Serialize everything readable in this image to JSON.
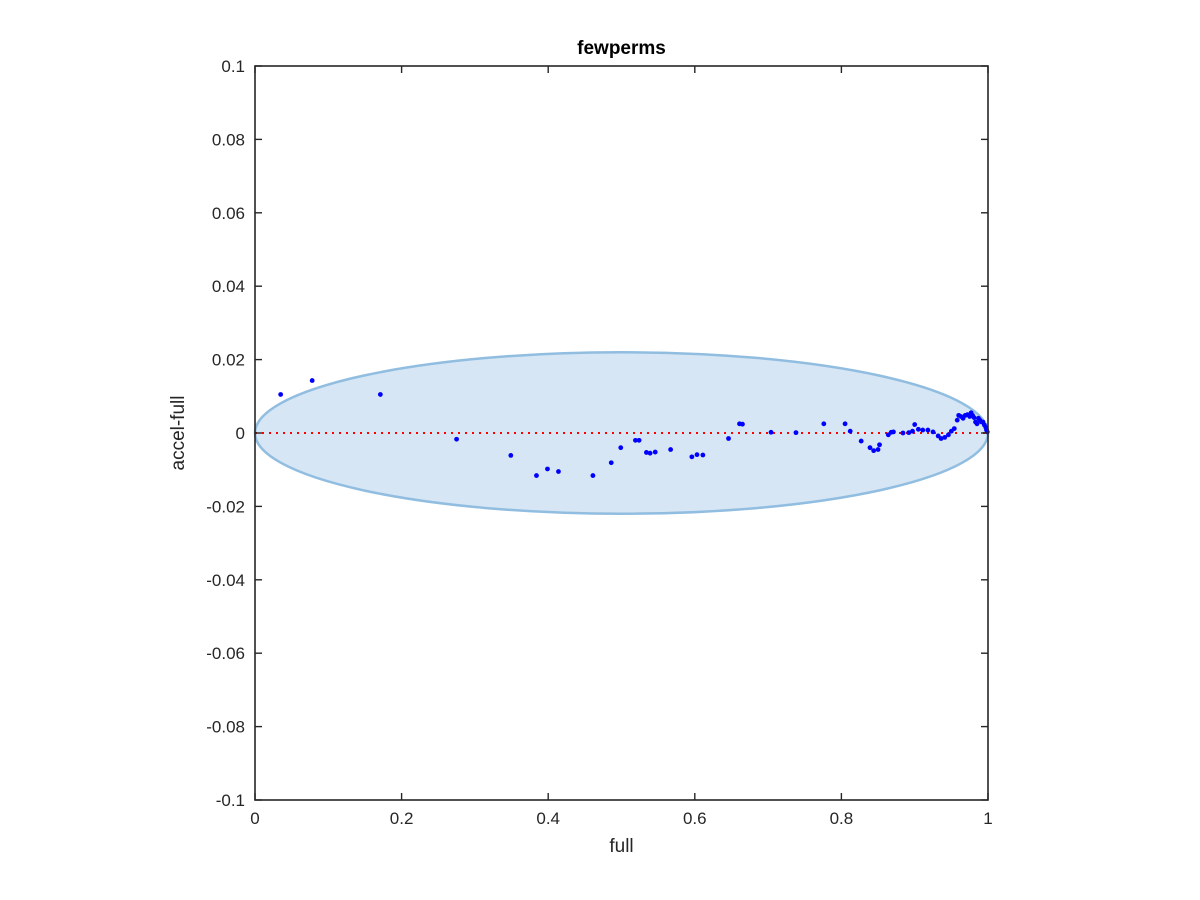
{
  "chart_data": {
    "type": "scatter",
    "title": "fewperms",
    "xlabel": "full",
    "ylabel": "accel-full",
    "xlim": [
      0,
      1
    ],
    "ylim": [
      -0.1,
      0.1
    ],
    "xticks": [
      "0",
      "0.2",
      "0.4",
      "0.6",
      "0.8",
      "1"
    ],
    "yticks": [
      "-0.1",
      "-0.08",
      "-0.06",
      "-0.04",
      "-0.02",
      "0",
      "0.02",
      "0.04",
      "0.06",
      "0.08",
      "0.1"
    ],
    "grid": false,
    "marker_color": "#0000ff",
    "reference_line": {
      "y": 0,
      "style": "dotted",
      "color": "#ff0000"
    },
    "ellipse": {
      "center": [
        0.5,
        0
      ],
      "x_radius": 0.5,
      "y_radius": 0.022,
      "fill": "#d6e6f4",
      "stroke": "#90bde0"
    },
    "points": [
      [
        0.035,
        0.0105
      ],
      [
        0.078,
        0.0143
      ],
      [
        0.171,
        0.0105
      ],
      [
        0.275,
        -0.0017
      ],
      [
        0.349,
        -0.0061
      ],
      [
        0.384,
        -0.0116
      ],
      [
        0.399,
        -0.0098
      ],
      [
        0.414,
        -0.0105
      ],
      [
        0.461,
        -0.0116
      ],
      [
        0.486,
        -0.0081
      ],
      [
        0.499,
        -0.004
      ],
      [
        0.519,
        -0.002
      ],
      [
        0.524,
        -0.002
      ],
      [
        0.534,
        -0.0053
      ],
      [
        0.539,
        -0.0055
      ],
      [
        0.546,
        -0.0052
      ],
      [
        0.567,
        -0.0045
      ],
      [
        0.596,
        -0.0065
      ],
      [
        0.603,
        -0.0059
      ],
      [
        0.611,
        -0.006
      ],
      [
        0.646,
        -0.0015
      ],
      [
        0.661,
        0.0025
      ],
      [
        0.665,
        0.0024
      ],
      [
        0.704,
        0.0002
      ],
      [
        0.738,
        0.0001
      ],
      [
        0.776,
        0.0025
      ],
      [
        0.805,
        0.0025
      ],
      [
        0.812,
        0.0005
      ],
      [
        0.827,
        -0.0022
      ],
      [
        0.839,
        -0.004
      ],
      [
        0.844,
        -0.0048
      ],
      [
        0.85,
        -0.0045
      ],
      [
        0.852,
        -0.0032
      ],
      [
        0.864,
        -0.0005
      ],
      [
        0.868,
        0.0002
      ],
      [
        0.871,
        0.0003
      ],
      [
        0.884,
        0.0
      ],
      [
        0.892,
        0.0001
      ],
      [
        0.897,
        0.0005
      ],
      [
        0.9,
        0.0023
      ],
      [
        0.905,
        0.001
      ],
      [
        0.911,
        0.0008
      ],
      [
        0.918,
        0.0008
      ],
      [
        0.925,
        0.0003
      ],
      [
        0.932,
        -0.0008
      ],
      [
        0.936,
        -0.0015
      ],
      [
        0.941,
        -0.0012
      ],
      [
        0.946,
        -0.0005
      ],
      [
        0.95,
        0.0005
      ],
      [
        0.954,
        0.0012
      ],
      [
        0.958,
        0.0035
      ],
      [
        0.96,
        0.0048
      ],
      [
        0.963,
        0.0045
      ],
      [
        0.966,
        0.004
      ],
      [
        0.969,
        0.0048
      ],
      [
        0.972,
        0.005
      ],
      [
        0.975,
        0.0045
      ],
      [
        0.977,
        0.0055
      ],
      [
        0.979,
        0.0048
      ],
      [
        0.981,
        0.0042
      ],
      [
        0.983,
        0.003
      ],
      [
        0.985,
        0.0025
      ],
      [
        0.987,
        0.004
      ],
      [
        0.989,
        0.0035
      ],
      [
        0.991,
        0.003
      ],
      [
        0.993,
        0.003
      ],
      [
        0.995,
        0.0022
      ],
      [
        0.997,
        0.0015
      ],
      [
        0.998,
        0.0008
      ],
      [
        0.999,
        0.0003
      ]
    ]
  }
}
